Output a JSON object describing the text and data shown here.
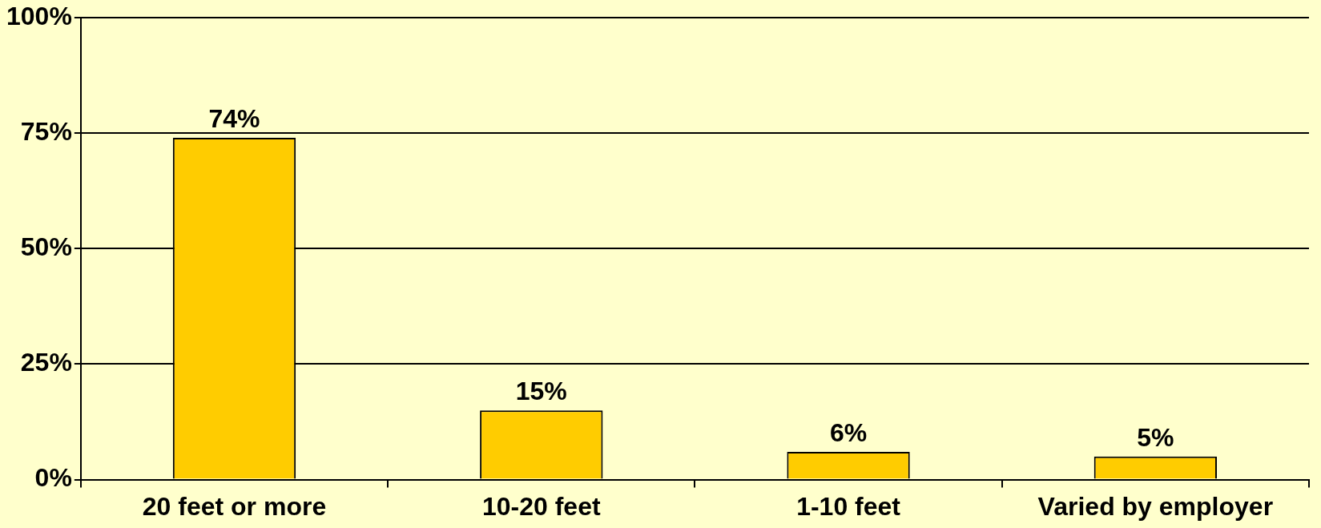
{
  "chart_data": {
    "type": "bar",
    "categories": [
      "20 feet or more",
      "10-20 feet",
      "1-10 feet",
      "Varied by employer"
    ],
    "values": [
      74,
      15,
      6,
      5
    ],
    "color": "#ffcc00",
    "value_labels": [
      "74%",
      "15%",
      "6%",
      "5%"
    ],
    "ylim": [
      0,
      100
    ],
    "yticks": [
      {
        "value": 0,
        "label": "0%"
      },
      {
        "value": 25,
        "label": "25%"
      },
      {
        "value": 50,
        "label": "50%"
      },
      {
        "value": 75,
        "label": "75%"
      },
      {
        "value": 100,
        "label": "100%"
      }
    ],
    "grid": "y",
    "legend": false
  }
}
